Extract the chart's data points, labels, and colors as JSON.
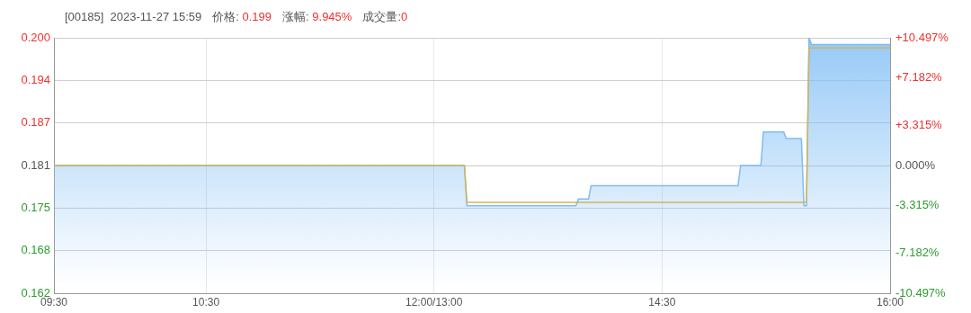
{
  "chart_data": {
    "type": "area",
    "title": "[00185]  2023-11-27 15:59",
    "annotations": [
      "价格: 0.199",
      "涨幅: 9.945%",
      "成交量:0"
    ],
    "categories": [
      "09:30",
      null,
      null,
      null,
      null,
      null,
      null,
      null,
      null,
      null,
      null,
      null,
      null,
      null,
      null,
      null,
      null,
      null,
      null,
      null,
      null,
      null,
      null,
      null,
      null,
      null,
      null,
      null,
      null,
      null,
      null,
      null,
      null,
      null,
      null,
      null,
      null,
      null,
      null,
      null,
      null,
      null,
      null,
      null,
      null,
      null,
      null,
      null,
      null,
      null,
      null,
      null,
      null,
      null,
      null,
      null,
      null,
      null,
      null,
      null,
      "10:30",
      null,
      null,
      null,
      null,
      null,
      null,
      null,
      null,
      null,
      null,
      null,
      null,
      null,
      null,
      null,
      null,
      null,
      null,
      null,
      null,
      null,
      null,
      null,
      null,
      null,
      null,
      null,
      null,
      null,
      null,
      null,
      null,
      null,
      null,
      null,
      null,
      null,
      null,
      null,
      null,
      null,
      null,
      null,
      null,
      null,
      null,
      null,
      null,
      null,
      null,
      null,
      null,
      null,
      null,
      null,
      null,
      null,
      null,
      null,
      null,
      null,
      null,
      null,
      null,
      null,
      null,
      null,
      null,
      null,
      null,
      null,
      null,
      null,
      null,
      null,
      null,
      null,
      null,
      null,
      null,
      null,
      null,
      null,
      null,
      null,
      null,
      null,
      null,
      null,
      "12:00/13:00",
      null,
      null,
      null,
      null,
      null,
      null,
      null,
      null,
      null,
      null,
      null,
      null,
      null,
      null,
      null,
      null,
      null,
      null,
      null,
      null,
      null,
      null,
      null,
      null,
      null,
      null,
      null,
      null,
      null,
      null,
      null,
      null,
      null,
      null,
      null,
      null,
      null,
      null,
      null,
      null,
      null,
      null,
      null,
      null,
      null,
      null,
      null,
      null,
      null,
      null,
      null,
      null,
      null,
      null,
      null,
      null,
      null,
      null,
      null,
      null,
      null,
      null,
      null,
      null,
      null,
      null,
      null,
      null,
      null,
      null,
      null,
      null,
      null,
      null,
      null,
      null,
      null,
      null,
      null,
      null,
      null,
      null,
      null,
      null,
      null,
      null,
      null,
      null,
      null,
      "14:30",
      null,
      null,
      null,
      null,
      null,
      null,
      null,
      null,
      null,
      null,
      null,
      null,
      null,
      null,
      null,
      null,
      null,
      null,
      null,
      null,
      null,
      null,
      null,
      null,
      null,
      null,
      null,
      null,
      null,
      null,
      null,
      null,
      null,
      null,
      null,
      null,
      null,
      null,
      null,
      null,
      null,
      null,
      null,
      null,
      null,
      null,
      null,
      null,
      null,
      null,
      null,
      null,
      null,
      null,
      null,
      null,
      null,
      null,
      null,
      null,
      null,
      null,
      null,
      null,
      null,
      null,
      null,
      null,
      null,
      null,
      null,
      null,
      null,
      null,
      null,
      null,
      null,
      null,
      null,
      null,
      null,
      null,
      null,
      null,
      null,
      null,
      null,
      null,
      null,
      "16:00"
    ],
    "series": [
      {
        "color": "#7dbcf5",
        "values": [
          0.181,
          0.181,
          0.181,
          0.181,
          0.181,
          0.181,
          0.181,
          0.181,
          0.181,
          0.181,
          0.181,
          0.181,
          0.181,
          0.181,
          0.181,
          0.181,
          0.181,
          0.181,
          0.181,
          0.181,
          0.181,
          0.181,
          0.181,
          0.181,
          0.181,
          0.181,
          0.181,
          0.181,
          0.181,
          0.181,
          0.181,
          0.181,
          0.181,
          0.181,
          0.181,
          0.181,
          0.181,
          0.181,
          0.181,
          0.181,
          0.181,
          0.181,
          0.181,
          0.181,
          0.181,
          0.181,
          0.181,
          0.181,
          0.181,
          0.181,
          0.181,
          0.181,
          0.181,
          0.181,
          0.181,
          0.181,
          0.181,
          0.181,
          0.181,
          0.181,
          0.181,
          0.181,
          0.181,
          0.181,
          0.181,
          0.181,
          0.181,
          0.181,
          0.181,
          0.181,
          0.181,
          0.181,
          0.181,
          0.181,
          0.181,
          0.181,
          0.181,
          0.181,
          0.181,
          0.181,
          0.181,
          0.181,
          0.181,
          0.181,
          0.181,
          0.181,
          0.181,
          0.181,
          0.181,
          0.181,
          0.181,
          0.181,
          0.181,
          0.181,
          0.181,
          0.181,
          0.181,
          0.181,
          0.181,
          0.181,
          0.181,
          0.181,
          0.181,
          0.181,
          0.181,
          0.181,
          0.181,
          0.181,
          0.181,
          0.181,
          0.181,
          0.181,
          0.181,
          0.181,
          0.181,
          0.181,
          0.181,
          0.181,
          0.181,
          0.181,
          0.181,
          0.181,
          0.181,
          0.181,
          0.181,
          0.181,
          0.181,
          0.181,
          0.181,
          0.181,
          0.181,
          0.181,
          0.181,
          0.181,
          0.181,
          0.181,
          0.181,
          0.181,
          0.181,
          0.181,
          0.181,
          0.181,
          0.181,
          0.181,
          0.181,
          0.181,
          0.181,
          0.181,
          0.181,
          0.181,
          0.181,
          0.181,
          0.181,
          0.181,
          0.181,
          0.181,
          0.181,
          0.181,
          0.181,
          0.181,
          0.181,
          0.181,
          0.181,
          0.175,
          0.175,
          0.175,
          0.175,
          0.175,
          0.175,
          0.175,
          0.175,
          0.175,
          0.175,
          0.175,
          0.175,
          0.175,
          0.175,
          0.175,
          0.175,
          0.175,
          0.175,
          0.175,
          0.175,
          0.175,
          0.175,
          0.175,
          0.175,
          0.175,
          0.175,
          0.175,
          0.175,
          0.175,
          0.175,
          0.175,
          0.175,
          0.175,
          0.175,
          0.175,
          0.175,
          0.175,
          0.175,
          0.175,
          0.175,
          0.175,
          0.175,
          0.175,
          0.175,
          0.176,
          0.176,
          0.176,
          0.176,
          0.176,
          0.178,
          0.178,
          0.178,
          0.178,
          0.178,
          0.178,
          0.178,
          0.178,
          0.178,
          0.178,
          0.178,
          0.178,
          0.178,
          0.178,
          0.178,
          0.178,
          0.178,
          0.178,
          0.178,
          0.178,
          0.178,
          0.178,
          0.178,
          0.178,
          0.178,
          0.178,
          0.178,
          0.178,
          0.178,
          0.178,
          0.178,
          0.178,
          0.178,
          0.178,
          0.178,
          0.178,
          0.178,
          0.178,
          0.178,
          0.178,
          0.178,
          0.178,
          0.178,
          0.178,
          0.178,
          0.178,
          0.178,
          0.178,
          0.178,
          0.178,
          0.178,
          0.178,
          0.178,
          0.178,
          0.178,
          0.178,
          0.178,
          0.178,
          0.178,
          0.181,
          0.181,
          0.181,
          0.181,
          0.181,
          0.181,
          0.181,
          0.181,
          0.181,
          0.186,
          0.186,
          0.186,
          0.186,
          0.186,
          0.186,
          0.186,
          0.186,
          0.186,
          0.185,
          0.185,
          0.185,
          0.185,
          0.185,
          0.185,
          0.185,
          0.175,
          0.175,
          0.2,
          0.199,
          0.199,
          0.199,
          0.199,
          0.199,
          0.199,
          0.199,
          0.199,
          0.199,
          0.199,
          0.199,
          0.199,
          0.199,
          0.199,
          0.199,
          0.199,
          0.199,
          0.199,
          0.199,
          0.199,
          0.199,
          0.199,
          0.199,
          0.199,
          0.199,
          0.199,
          0.199,
          0.199,
          0.199,
          0.199,
          0.199,
          0.199
        ]
      },
      {
        "type": "line",
        "color": "#d4b45a",
        "values": [
          0.181,
          0.181,
          0.181,
          0.181,
          0.181,
          0.181,
          0.181,
          0.181,
          0.181,
          0.181,
          0.181,
          0.181,
          0.181,
          0.181,
          0.181,
          0.181,
          0.181,
          0.181,
          0.181,
          0.181,
          0.181,
          0.181,
          0.181,
          0.181,
          0.181,
          0.181,
          0.181,
          0.181,
          0.181,
          0.181,
          0.181,
          0.181,
          0.181,
          0.181,
          0.181,
          0.181,
          0.181,
          0.181,
          0.181,
          0.181,
          0.181,
          0.181,
          0.181,
          0.181,
          0.181,
          0.181,
          0.181,
          0.181,
          0.181,
          0.181,
          0.181,
          0.181,
          0.181,
          0.181,
          0.181,
          0.181,
          0.181,
          0.181,
          0.181,
          0.181,
          0.181,
          0.181,
          0.181,
          0.181,
          0.181,
          0.181,
          0.181,
          0.181,
          0.181,
          0.181,
          0.181,
          0.181,
          0.181,
          0.181,
          0.181,
          0.181,
          0.181,
          0.181,
          0.181,
          0.181,
          0.181,
          0.181,
          0.181,
          0.181,
          0.181,
          0.181,
          0.181,
          0.181,
          0.181,
          0.181,
          0.181,
          0.181,
          0.181,
          0.181,
          0.181,
          0.181,
          0.181,
          0.181,
          0.181,
          0.181,
          0.181,
          0.181,
          0.181,
          0.181,
          0.181,
          0.181,
          0.181,
          0.181,
          0.181,
          0.181,
          0.181,
          0.181,
          0.181,
          0.181,
          0.181,
          0.181,
          0.181,
          0.181,
          0.181,
          0.181,
          0.181,
          0.181,
          0.181,
          0.181,
          0.181,
          0.181,
          0.181,
          0.181,
          0.181,
          0.181,
          0.181,
          0.181,
          0.181,
          0.181,
          0.181,
          0.181,
          0.181,
          0.181,
          0.181,
          0.181,
          0.181,
          0.181,
          0.181,
          0.181,
          0.181,
          0.181,
          0.181,
          0.181,
          0.181,
          0.181,
          0.181,
          0.181,
          0.181,
          0.181,
          0.181,
          0.181,
          0.181,
          0.181,
          0.181,
          0.181,
          0.181,
          0.181,
          0.181,
          0.1755,
          0.1755,
          0.1755,
          0.1755,
          0.1755,
          0.1755,
          0.1755,
          0.1755,
          0.1755,
          0.1755,
          0.1755,
          0.1755,
          0.1755,
          0.1755,
          0.1755,
          0.1755,
          0.1755,
          0.1755,
          0.1755,
          0.1755,
          0.1755,
          0.1755,
          0.1755,
          0.1755,
          0.1755,
          0.1755,
          0.1755,
          0.1755,
          0.1755,
          0.1755,
          0.1755,
          0.1755,
          0.1755,
          0.1755,
          0.1755,
          0.1755,
          0.1755,
          0.1755,
          0.1755,
          0.1755,
          0.1755,
          0.1755,
          0.1755,
          0.1755,
          0.1755,
          0.1755,
          0.1755,
          0.1755,
          0.1755,
          0.1755,
          0.1755,
          0.1755,
          0.1755,
          0.1755,
          0.1755,
          0.1755,
          0.1755,
          0.1755,
          0.1755,
          0.1755,
          0.1755,
          0.1755,
          0.1755,
          0.1755,
          0.1755,
          0.1755,
          0.1755,
          0.1755,
          0.1755,
          0.1755,
          0.1755,
          0.1755,
          0.1755,
          0.1755,
          0.1755,
          0.1755,
          0.1755,
          0.1755,
          0.1755,
          0.1755,
          0.1755,
          0.1755,
          0.1755,
          0.1755,
          0.1755,
          0.1755,
          0.1755,
          0.1755,
          0.1755,
          0.1755,
          0.1755,
          0.1755,
          0.1755,
          0.1755,
          0.1755,
          0.1755,
          0.1755,
          0.1755,
          0.1755,
          0.1755,
          0.1755,
          0.1755,
          0.1755,
          0.1755,
          0.1755,
          0.1755,
          0.1755,
          0.1755,
          0.1755,
          0.1755,
          0.1755,
          0.1755,
          0.1755,
          0.1755,
          0.1755,
          0.1755,
          0.1755,
          0.1755,
          0.1755,
          0.1755,
          0.1755,
          0.1755,
          0.1755,
          0.1755,
          0.1755,
          0.1755,
          0.1755,
          0.1755,
          0.1755,
          0.1755,
          0.1755,
          0.1755,
          0.1755,
          0.1755,
          0.1755,
          0.1985,
          0.1985,
          0.1985,
          0.1985,
          0.1985,
          0.1985,
          0.1985,
          0.1985,
          0.1985,
          0.1985,
          0.1985,
          0.1985,
          0.1985,
          0.1985,
          0.1985,
          0.1985,
          0.1985,
          0.1985,
          0.1985,
          0.1985,
          0.1985,
          0.1985,
          0.1985,
          0.1985,
          0.1985,
          0.1985,
          0.1985,
          0.1985,
          0.1985,
          0.1985,
          0.1985,
          0.1985,
          0.1985
        ]
      }
    ],
    "ylim": [
      0.162,
      0.2
    ],
    "yticks": [
      0.162,
      {
        "value": 0.16833,
        "label": "0.168"
      },
      {
        "value": 0.17467,
        "label": "0.175"
      },
      0.181,
      {
        "value": 0.18733,
        "label": "0.187"
      },
      {
        "value": 0.19367,
        "label": "0.194"
      },
      {
        "value": 0.2,
        "label": "0.200"
      }
    ],
    "y2lim": [
      -10.497,
      10.497
    ],
    "y2ticks": [
      {
        "value": -10.497,
        "label": "-10.497%"
      },
      {
        "value": -7.182,
        "label": "-7.182%"
      },
      {
        "value": -3.315,
        "label": "-3.315%"
      },
      {
        "value": 0,
        "label": "0.000%"
      },
      {
        "value": 3.315,
        "label": "+3.315%"
      },
      {
        "value": 7.182,
        "label": "+7.182%"
      },
      {
        "value": 10.497,
        "label": "+10.497%"
      }
    ],
    "grid": true,
    "line_style": "solid",
    "marker": "none"
  }
}
